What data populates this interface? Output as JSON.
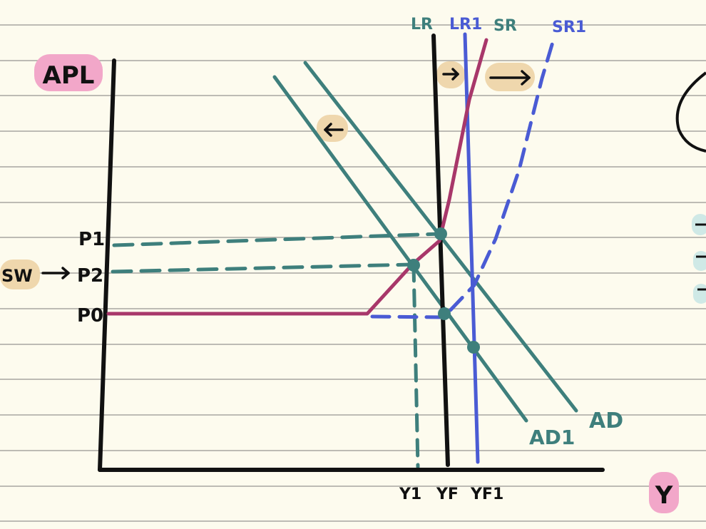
{
  "labels": {
    "y_axis": "APL",
    "x_axis": "Y",
    "p1": "P1",
    "p2": "P2",
    "p0": "P0",
    "sw": "SW",
    "lr": "LR",
    "lr1": "LR1",
    "sr": "SR",
    "sr1": "SR1",
    "ad": "AD",
    "ad1": "AD1",
    "y1": "Y1",
    "yf": "YF",
    "yf1": "YF1"
  },
  "colors": {
    "paper": "#fdfbee",
    "rule_line": "#a8a6a0",
    "axis": "#111111",
    "teal": "#3e7f7c",
    "crimson": "#a8376a",
    "blue": "#4a5bd4",
    "pink_highlight": "#f2a7c9",
    "tan_highlight": "#efd7ad",
    "mint_highlight": "#cfe9e6"
  },
  "icons": {
    "shift_arrow_left": "arrow-left-icon",
    "shift_arrow_right_small": "arrow-right-icon",
    "shift_arrow_right_large": "arrow-right-icon",
    "sw_arrow": "arrow-right-icon"
  }
}
